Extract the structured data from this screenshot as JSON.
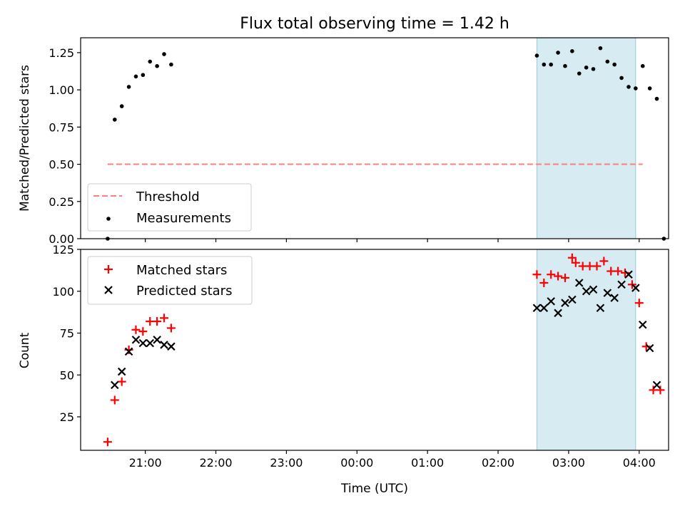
{
  "figure": {
    "title": "Flux total observing time = 1.42 h",
    "xlabel": "Time (UTC)"
  },
  "chart_data": [
    {
      "type": "scatter",
      "panel": "top",
      "ylabel": "Matched/Predicted stars",
      "xlim": [
        "20:05",
        "04:25"
      ],
      "ylim": [
        0,
        1.35
      ],
      "x_tick_labels": [],
      "y_ticks": [
        0.0,
        0.25,
        0.5,
        0.75,
        1.0,
        1.25
      ],
      "y_tick_labels": [
        "0.00",
        "0.25",
        "0.50",
        "0.75",
        "1.00",
        "1.25"
      ],
      "shaded_span": {
        "x": [
          "02:33",
          "03:57"
        ],
        "color": "#add8e6"
      },
      "legend": "lower-left",
      "threshold": {
        "name": "Threshold",
        "y": 0.5,
        "x": [
          "20:28",
          "04:03"
        ],
        "color": "#ff7f7f",
        "style": "dashed"
      },
      "series": [
        {
          "name": "Measurements",
          "marker": "dot",
          "color": "#000000",
          "points": [
            [
              "20:28",
              0.0
            ],
            [
              "20:34",
              0.8
            ],
            [
              "20:40",
              0.89
            ],
            [
              "20:46",
              1.02
            ],
            [
              "20:52",
              1.09
            ],
            [
              "20:58",
              1.1
            ],
            [
              "21:04",
              1.19
            ],
            [
              "21:10",
              1.16
            ],
            [
              "21:16",
              1.24
            ],
            [
              "21:22",
              1.17
            ],
            [
              "02:33",
              1.23
            ],
            [
              "02:39",
              1.17
            ],
            [
              "02:45",
              1.17
            ],
            [
              "02:51",
              1.25
            ],
            [
              "02:57",
              1.16
            ],
            [
              "03:03",
              1.26
            ],
            [
              "03:09",
              1.11
            ],
            [
              "03:15",
              1.15
            ],
            [
              "03:21",
              1.14
            ],
            [
              "03:27",
              1.28
            ],
            [
              "03:33",
              1.19
            ],
            [
              "03:39",
              1.17
            ],
            [
              "03:45",
              1.08
            ],
            [
              "03:51",
              1.02
            ],
            [
              "03:57",
              1.01
            ],
            [
              "04:03",
              1.16
            ],
            [
              "04:09",
              1.01
            ],
            [
              "04:15",
              0.94
            ],
            [
              "04:21",
              0.0
            ]
          ]
        }
      ]
    },
    {
      "type": "scatter",
      "panel": "bottom",
      "ylabel": "Count",
      "xlim": [
        "20:05",
        "04:25"
      ],
      "ylim": [
        5,
        125
      ],
      "x_ticks": [
        "21:00",
        "22:00",
        "23:00",
        "00:00",
        "01:00",
        "02:00",
        "03:00",
        "04:00"
      ],
      "x_tick_labels": [
        "21:00",
        "22:00",
        "23:00",
        "00:00",
        "01:00",
        "02:00",
        "03:00",
        "04:00"
      ],
      "y_ticks": [
        25,
        50,
        75,
        100,
        125
      ],
      "y_tick_labels": [
        "25",
        "50",
        "75",
        "100",
        "125"
      ],
      "shaded_span": {
        "x": [
          "02:33",
          "03:57"
        ],
        "color": "#add8e6"
      },
      "legend": "top-left",
      "series": [
        {
          "name": "Matched stars",
          "marker": "plus",
          "color": "#ff0000",
          "points": [
            [
              "20:28",
              10
            ],
            [
              "20:34",
              35
            ],
            [
              "20:40",
              46
            ],
            [
              "20:46",
              65
            ],
            [
              "20:52",
              77
            ],
            [
              "20:58",
              76
            ],
            [
              "21:04",
              82
            ],
            [
              "21:10",
              82
            ],
            [
              "21:16",
              84
            ],
            [
              "21:22",
              78
            ],
            [
              "02:33",
              110
            ],
            [
              "02:39",
              105
            ],
            [
              "02:45",
              110
            ],
            [
              "02:51",
              109
            ],
            [
              "02:57",
              108
            ],
            [
              "03:03",
              120
            ],
            [
              "03:06",
              117
            ],
            [
              "03:12",
              115
            ],
            [
              "03:18",
              115
            ],
            [
              "03:24",
              115
            ],
            [
              "03:30",
              118
            ],
            [
              "03:36",
              112
            ],
            [
              "03:42",
              112
            ],
            [
              "03:48",
              111
            ],
            [
              "03:54",
              104
            ],
            [
              "04:00",
              93
            ],
            [
              "04:06",
              67
            ],
            [
              "04:12",
              41
            ],
            [
              "04:18",
              41
            ]
          ]
        },
        {
          "name": "Predicted stars",
          "marker": "x",
          "color": "#000000",
          "points": [
            [
              "20:34",
              44
            ],
            [
              "20:40",
              52
            ],
            [
              "20:46",
              64
            ],
            [
              "20:52",
              71
            ],
            [
              "20:58",
              69
            ],
            [
              "21:04",
              69
            ],
            [
              "21:10",
              71
            ],
            [
              "21:16",
              68
            ],
            [
              "21:22",
              67
            ],
            [
              "02:33",
              90
            ],
            [
              "02:39",
              90
            ],
            [
              "02:45",
              94
            ],
            [
              "02:51",
              87
            ],
            [
              "02:57",
              93
            ],
            [
              "03:03",
              95
            ],
            [
              "03:09",
              105
            ],
            [
              "03:15",
              100
            ],
            [
              "03:21",
              101
            ],
            [
              "03:27",
              90
            ],
            [
              "03:33",
              99
            ],
            [
              "03:39",
              96
            ],
            [
              "03:45",
              104
            ],
            [
              "03:51",
              110
            ],
            [
              "03:57",
              102
            ],
            [
              "04:03",
              80
            ],
            [
              "04:09",
              66
            ],
            [
              "04:15",
              44
            ]
          ]
        }
      ]
    }
  ]
}
